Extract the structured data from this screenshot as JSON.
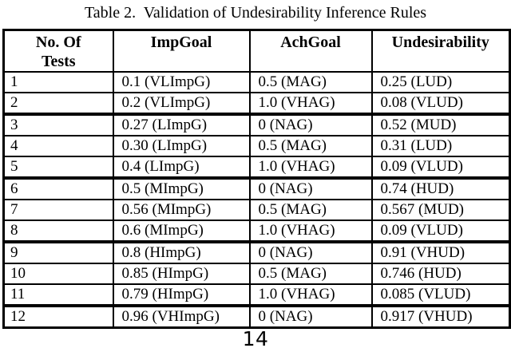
{
  "caption": "Table 2.  Validation of Undesirability Inference Rules",
  "page_number": "14",
  "table": {
    "headers": {
      "col1_line1": "No. Of",
      "col1_line2": "Tests",
      "col2": "ImpGoal",
      "col3": "AchGoal",
      "col4": "Undesirability"
    },
    "rows": [
      {
        "no": "1",
        "imp": "0.1 (VLImpG)",
        "ach": "0.5 (MAG)",
        "und": "0.25 (LUD)"
      },
      {
        "no": "2",
        "imp": "0.2 (VLImpG)",
        "ach": "1.0 (VHAG)",
        "und": "0.08 (VLUD)"
      },
      {
        "no": "3",
        "imp": "0.27 (LImpG)",
        "ach": "0 (NAG)",
        "und": "0.52 (MUD)"
      },
      {
        "no": "4",
        "imp": "0.30 (LImpG)",
        "ach": "0.5 (MAG)",
        "und": "0.31 (LUD)"
      },
      {
        "no": "5",
        "imp": "0.4 (LImpG)",
        "ach": "1.0 (VHAG)",
        "und": "0.09 (VLUD)"
      },
      {
        "no": "6",
        "imp": "0.5 (MImpG)",
        "ach": "0 (NAG)",
        "und": "0.74 (HUD)"
      },
      {
        "no": "7",
        "imp": "0.56 (MImpG)",
        "ach": "0.5 (MAG)",
        "und": "0.567 (MUD)"
      },
      {
        "no": "8",
        "imp": "0.6 (MImpG)",
        "ach": "1.0 (VHAG)",
        "und": "0.09 (VLUD)"
      },
      {
        "no": "9",
        "imp": "0.8 (HImpG)",
        "ach": "0 (NAG)",
        "und": "0.91 (VHUD)"
      },
      {
        "no": "10",
        "imp": "0.85 (HImpG)",
        "ach": "0.5 (MAG)",
        "und": "0.746 (HUD)"
      },
      {
        "no": "11",
        "imp": "0.79 (HImpG)",
        "ach": "1.0 (VHAG)",
        "und": "0.085 (VLUD)"
      },
      {
        "no": "12",
        "imp": "0.96 (VHImpG)",
        "ach": "0 (NAG)",
        "und": "0.917 (VHUD)"
      }
    ]
  }
}
